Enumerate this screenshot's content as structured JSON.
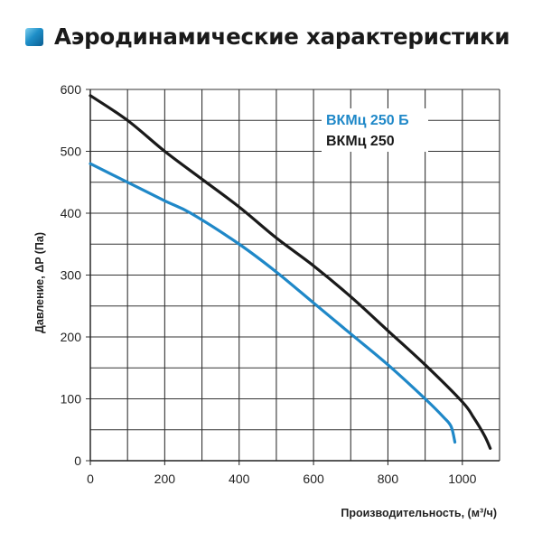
{
  "header": {
    "title": "Аэродинамические характеристики",
    "icon": "blue-square-icon"
  },
  "chart_data": {
    "type": "line",
    "title": "Аэродинамические характеристики",
    "xlabel": "Производительность, (м³/ч)",
    "ylabel": "Давление, ΔP (Па)",
    "xlim": [
      0,
      1100
    ],
    "ylim": [
      0,
      600
    ],
    "x_ticks": [
      0,
      200,
      400,
      600,
      800,
      1000
    ],
    "y_ticks": [
      0,
      100,
      200,
      300,
      400,
      500,
      600
    ],
    "grid": {
      "x_step": 100,
      "y_step": 50,
      "on": true
    },
    "legend_position": "upper right (inside)",
    "series": [
      {
        "name": "ВКМц 250 Б",
        "color": "#1f88c8",
        "x": [
          0,
          100,
          200,
          270,
          400,
          500,
          600,
          700,
          800,
          900,
          950,
          970,
          980
        ],
        "y": [
          480,
          450,
          420,
          400,
          350,
          305,
          255,
          205,
          155,
          100,
          70,
          55,
          30
        ]
      },
      {
        "name": "ВКМц 250",
        "color": "#1a1a1a",
        "x": [
          0,
          100,
          200,
          300,
          400,
          500,
          600,
          700,
          800,
          900,
          1000,
          1030,
          1060,
          1075
        ],
        "y": [
          590,
          550,
          500,
          455,
          410,
          360,
          315,
          265,
          210,
          155,
          95,
          70,
          40,
          20
        ]
      }
    ]
  }
}
